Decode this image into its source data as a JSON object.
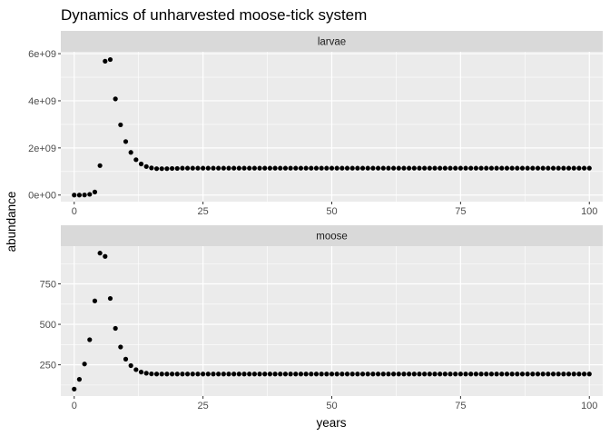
{
  "chart_data": {
    "type": "scatter",
    "title": "Dynamics of unharvested moose-tick system",
    "xlabel": "years",
    "ylabel": "abundance",
    "grid": true,
    "facet_layout": "stacked-vertical",
    "point_color": "#000000",
    "panel_background": "#ebebeb",
    "strip_background": "#d9d9d9",
    "xlim": [
      -2.6,
      102.6
    ],
    "x_ticks": [
      0,
      25,
      50,
      75,
      100
    ],
    "x_tick_labels": [
      "0",
      "25",
      "50",
      "75",
      "100"
    ],
    "x": [
      0,
      1,
      2,
      3,
      4,
      5,
      6,
      7,
      8,
      9,
      10,
      11,
      12,
      13,
      14,
      15,
      16,
      17,
      18,
      19,
      20,
      21,
      22,
      23,
      24,
      25,
      26,
      27,
      28,
      29,
      30,
      31,
      32,
      33,
      34,
      35,
      36,
      37,
      38,
      39,
      40,
      41,
      42,
      43,
      44,
      45,
      46,
      47,
      48,
      49,
      50,
      51,
      52,
      53,
      54,
      55,
      56,
      57,
      58,
      59,
      60,
      61,
      62,
      63,
      64,
      65,
      66,
      67,
      68,
      69,
      70,
      71,
      72,
      73,
      74,
      75,
      76,
      77,
      78,
      79,
      80,
      81,
      82,
      83,
      84,
      85,
      86,
      87,
      88,
      89,
      90,
      91,
      92,
      93,
      94,
      95,
      96,
      97,
      98,
      99,
      100
    ],
    "facets": [
      {
        "strip": "larvae",
        "ylim": [
          -280000000,
          6080000000
        ],
        "y_ticks": [
          0,
          2000000000,
          4000000000,
          6000000000
        ],
        "y_tick_labels": [
          "0e+00",
          "2e+09",
          "4e+09",
          "6e+09"
        ],
        "values": [
          0,
          0,
          5000000,
          30000000,
          130000000,
          1250000000,
          5680000000,
          5750000000,
          4080000000,
          2980000000,
          2270000000,
          1810000000,
          1500000000,
          1320000000,
          1210000000,
          1150000000,
          1120000000,
          1120000000,
          1120000000,
          1130000000,
          1130000000,
          1140000000,
          1140000000,
          1140000000,
          1140000000,
          1140000000,
          1140000000,
          1140000000,
          1140000000,
          1140000000,
          1140000000,
          1140000000,
          1140000000,
          1140000000,
          1140000000,
          1140000000,
          1140000000,
          1140000000,
          1140000000,
          1140000000,
          1140000000,
          1140000000,
          1140000000,
          1140000000,
          1140000000,
          1140000000,
          1140000000,
          1140000000,
          1140000000,
          1140000000,
          1140000000,
          1140000000,
          1140000000,
          1140000000,
          1140000000,
          1140000000,
          1140000000,
          1140000000,
          1140000000,
          1140000000,
          1140000000,
          1140000000,
          1140000000,
          1140000000,
          1140000000,
          1140000000,
          1140000000,
          1140000000,
          1140000000,
          1140000000,
          1140000000,
          1140000000,
          1140000000,
          1140000000,
          1140000000,
          1140000000,
          1140000000,
          1140000000,
          1140000000,
          1140000000,
          1140000000,
          1140000000,
          1140000000,
          1140000000,
          1140000000,
          1140000000,
          1140000000,
          1140000000,
          1140000000,
          1140000000,
          1140000000,
          1140000000,
          1140000000,
          1140000000,
          1140000000,
          1140000000,
          1140000000,
          1140000000,
          1140000000,
          1140000000,
          1140000000
        ]
      },
      {
        "strip": "moose",
        "ylim": [
          57,
          983
        ],
        "y_ticks": [
          250,
          500,
          750
        ],
        "y_tick_labels": [
          "250",
          "500",
          "750"
        ],
        "values": [
          100,
          160,
          255,
          405,
          645,
          940,
          920,
          660,
          475,
          360,
          285,
          245,
          220,
          205,
          198,
          194,
          193,
          193,
          193,
          193,
          193,
          193,
          193,
          193,
          193,
          193,
          193,
          193,
          193,
          193,
          193,
          193,
          193,
          193,
          193,
          193,
          193,
          193,
          193,
          193,
          193,
          193,
          193,
          193,
          193,
          193,
          193,
          193,
          193,
          193,
          193,
          193,
          193,
          193,
          193,
          193,
          193,
          193,
          193,
          193,
          193,
          193,
          193,
          193,
          193,
          193,
          193,
          193,
          193,
          193,
          193,
          193,
          193,
          193,
          193,
          193,
          193,
          193,
          193,
          193,
          193,
          193,
          193,
          193,
          193,
          193,
          193,
          193,
          193,
          193,
          193,
          193,
          193,
          193,
          193,
          193,
          193,
          193,
          193,
          193,
          193
        ]
      }
    ]
  }
}
